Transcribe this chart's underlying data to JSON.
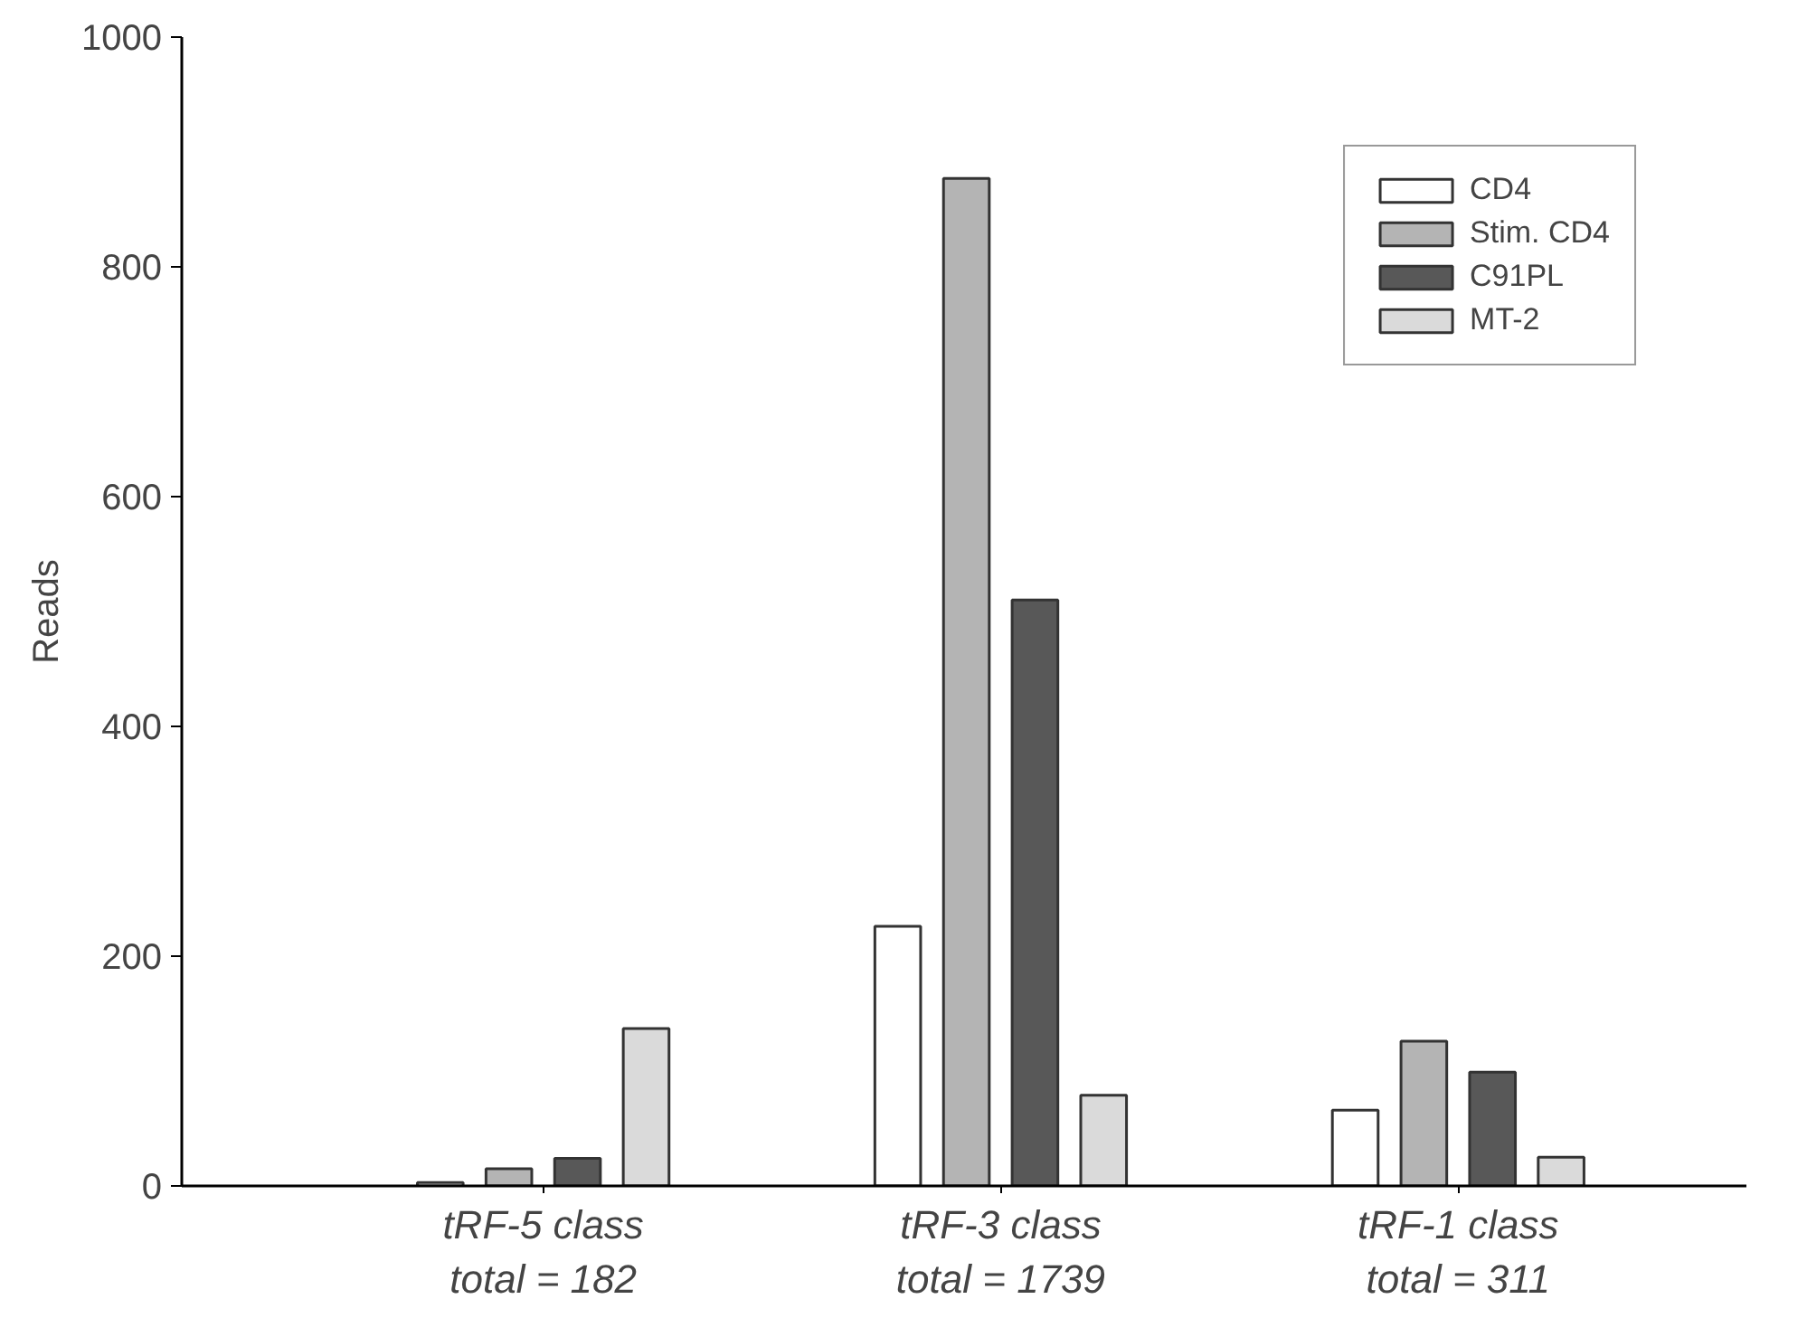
{
  "chart_data": {
    "type": "bar",
    "ylabel": "Reads",
    "categories": [
      "tRF-5 class\ntotal = 182",
      "tRF-3 class\ntotal = 1739",
      "tRF-1 class\ntotal = 311"
    ],
    "series": [
      {
        "name": "CD4",
        "color": "#ffffff",
        "values": [
          3,
          226,
          66
        ]
      },
      {
        "name": "Stim. CD4",
        "color": "#b4b4b4",
        "values": [
          15,
          877,
          126
        ]
      },
      {
        "name": "C91PL",
        "color": "#585858",
        "values": [
          24,
          510,
          99
        ]
      },
      {
        "name": "MT-2",
        "color": "#dadada",
        "values": [
          137,
          79,
          25
        ]
      }
    ],
    "ylim": [
      0,
      1000
    ],
    "yticks": [
      0,
      200,
      400,
      600,
      800,
      1000
    ],
    "grid": false,
    "legend": "top right"
  }
}
